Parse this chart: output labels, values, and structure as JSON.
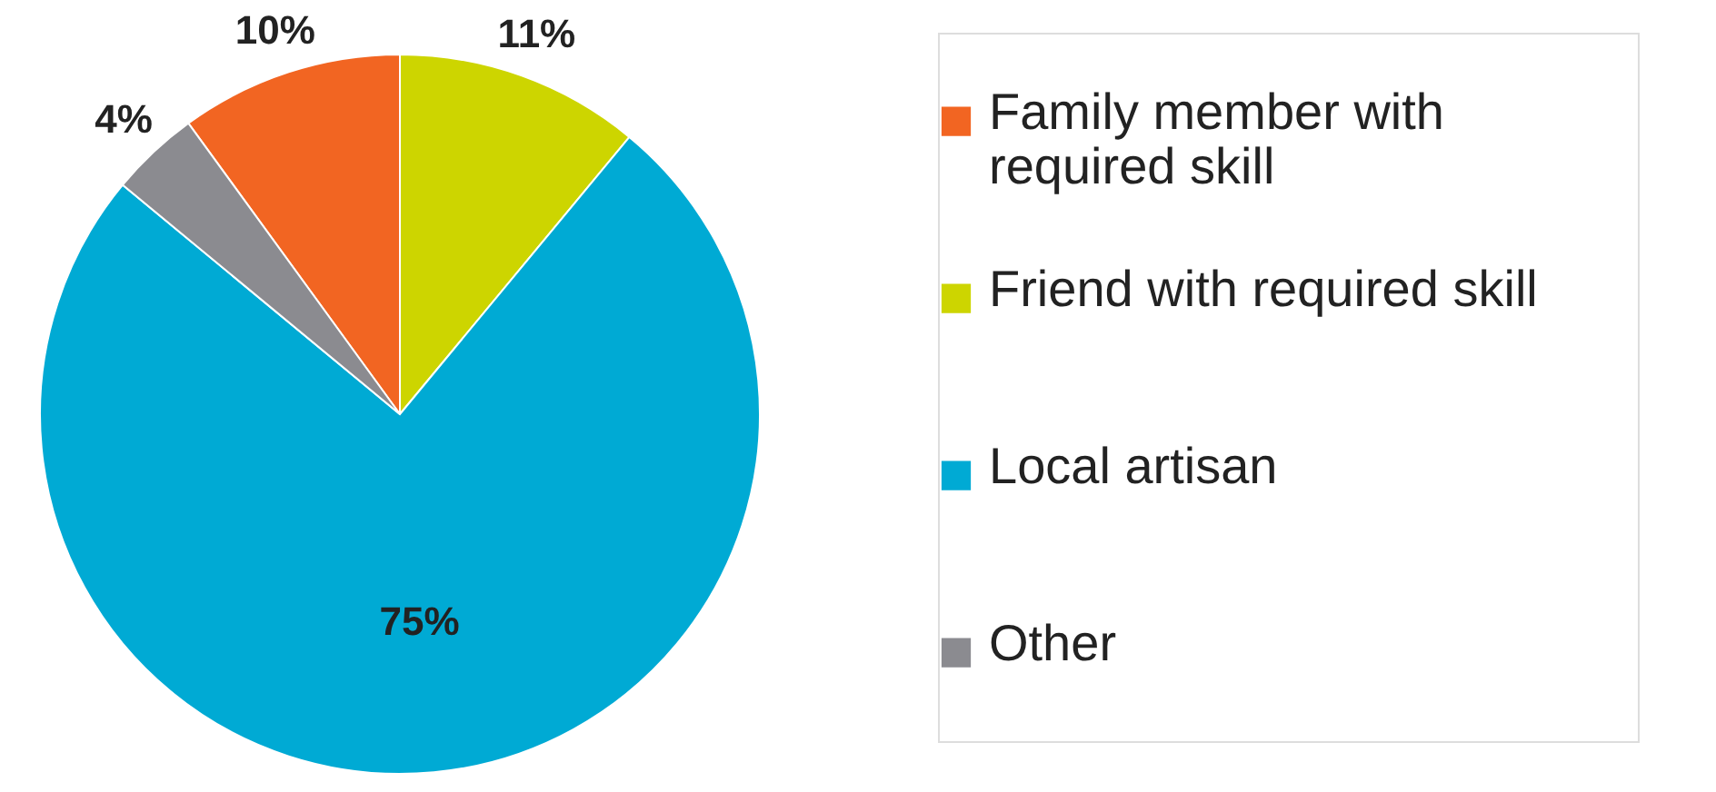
{
  "chart_data": {
    "type": "pie",
    "categories": [
      "Family member with required skill",
      "Friend with required skill",
      "Local artisan",
      "Other"
    ],
    "values": [
      10,
      11,
      75,
      4
    ],
    "colors": [
      "#f26522",
      "#cdd500",
      "#00aad4",
      "#8b8b90"
    ],
    "value_labels": [
      "10%",
      "11%",
      "75%",
      "4%"
    ],
    "legend": "right"
  }
}
